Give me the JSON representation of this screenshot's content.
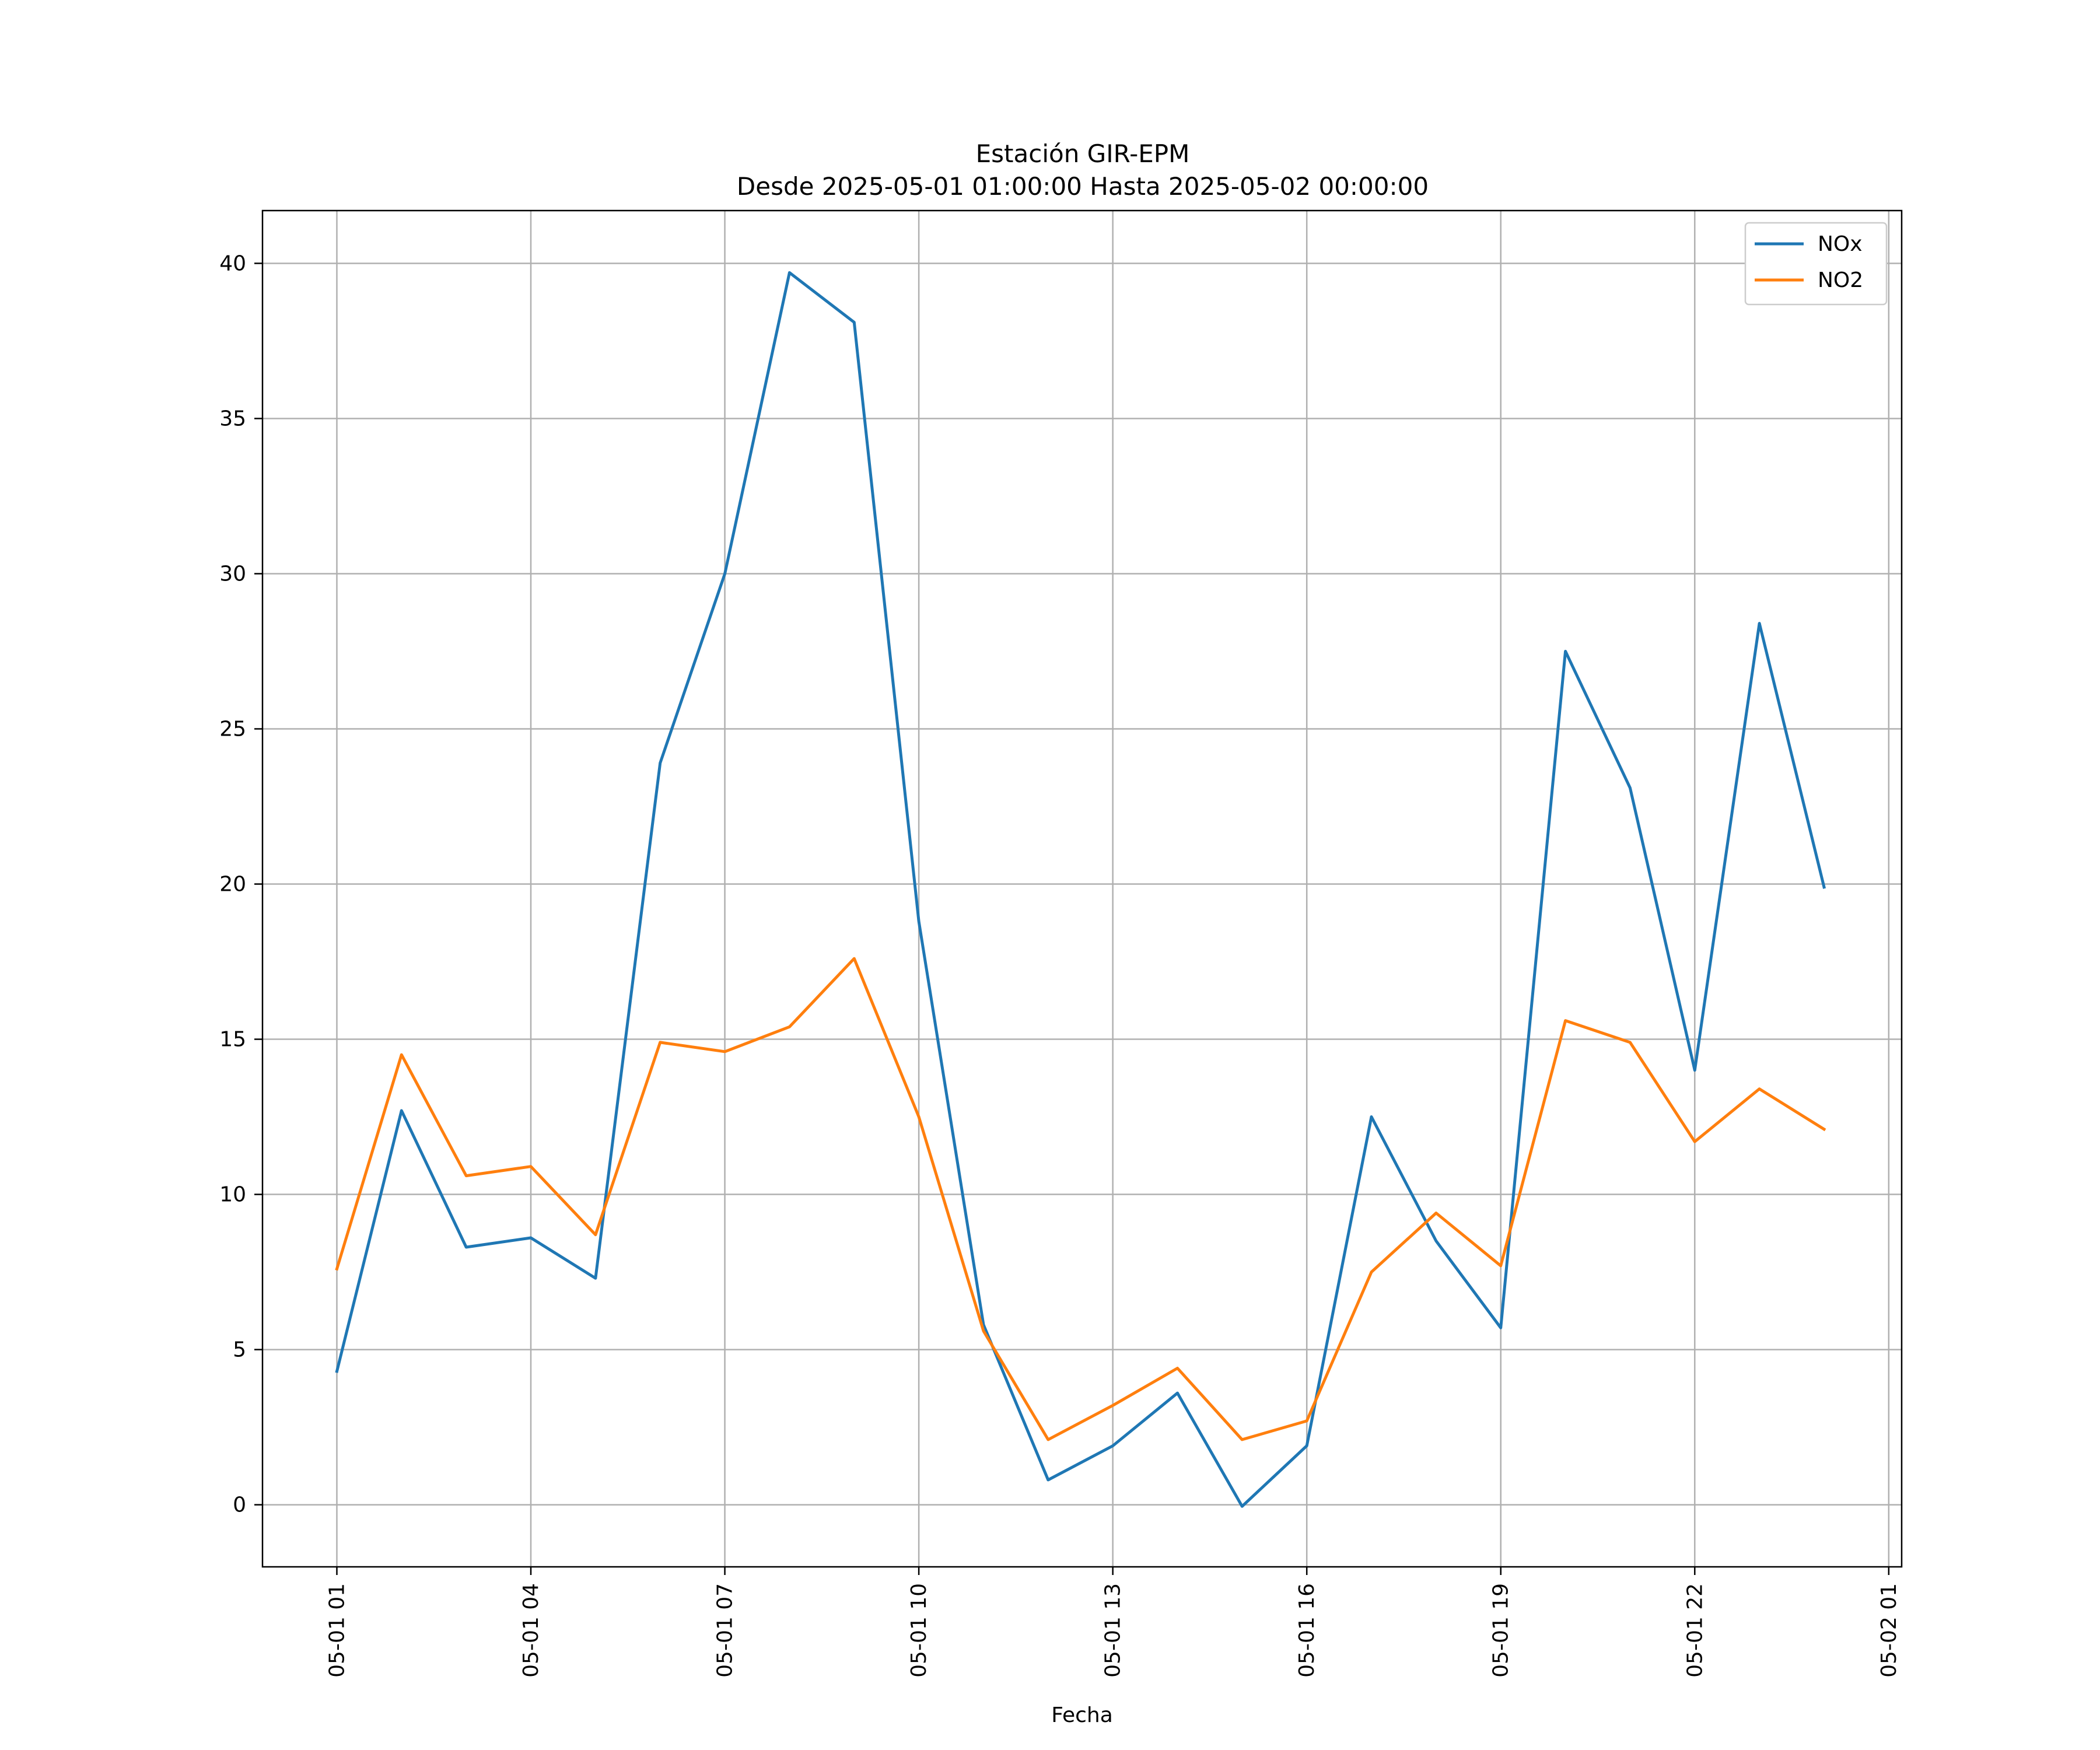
{
  "chart_data": {
    "type": "line",
    "title": "Estación GIR-EPM",
    "subtitle": "Desde 2025-05-01 01:00:00 Hasta 2025-05-02 00:00:00",
    "xlabel": "Fecha",
    "ylabel": "",
    "x_tick_labels": [
      "05-01 01",
      "05-01 04",
      "05-01 07",
      "05-01 10",
      "05-01 13",
      "05-01 16",
      "05-01 19",
      "05-01 22",
      "05-02 01"
    ],
    "y_tick_labels": [
      "0",
      "5",
      "10",
      "15",
      "20",
      "25",
      "30",
      "35",
      "40"
    ],
    "x_tick_hours": [
      1,
      4,
      7,
      10,
      13,
      16,
      19,
      22,
      25
    ],
    "y_ticks": [
      0,
      5,
      10,
      15,
      20,
      25,
      30,
      35,
      40
    ],
    "xlim": [
      -0.15,
      25.2
    ],
    "ylim": [
      -2,
      41.7
    ],
    "x": [
      "2025-05-01 01:00",
      "2025-05-01 02:00",
      "2025-05-01 03:00",
      "2025-05-01 04:00",
      "2025-05-01 05:00",
      "2025-05-01 06:00",
      "2025-05-01 07:00",
      "2025-05-01 08:00",
      "2025-05-01 09:00",
      "2025-05-01 10:00",
      "2025-05-01 11:00",
      "2025-05-01 12:00",
      "2025-05-01 13:00",
      "2025-05-01 14:00",
      "2025-05-01 15:00",
      "2025-05-01 16:00",
      "2025-05-01 17:00",
      "2025-05-01 18:00",
      "2025-05-01 19:00",
      "2025-05-01 20:00",
      "2025-05-01 21:00",
      "2025-05-01 22:00",
      "2025-05-01 23:00",
      "2025-05-02 00:00"
    ],
    "series": [
      {
        "name": "NOx",
        "color": "#1f77b4",
        "values": [
          4.3,
          12.7,
          8.3,
          8.6,
          7.3,
          23.9,
          30.0,
          39.7,
          38.1,
          18.8,
          5.8,
          0.8,
          1.9,
          3.6,
          -0.05,
          1.9,
          12.5,
          8.5,
          5.7,
          27.5,
          23.1,
          14.0,
          28.4,
          19.9
        ]
      },
      {
        "name": "NO2",
        "color": "#ff7f0e",
        "values": [
          7.6,
          14.5,
          10.6,
          10.9,
          8.7,
          14.9,
          14.6,
          15.4,
          17.6,
          12.5,
          5.6,
          2.1,
          3.2,
          4.4,
          2.1,
          2.7,
          7.5,
          9.4,
          7.7,
          15.6,
          14.9,
          11.7,
          13.4,
          12.1
        ]
      }
    ],
    "grid": true,
    "legend_position": "top-right"
  }
}
